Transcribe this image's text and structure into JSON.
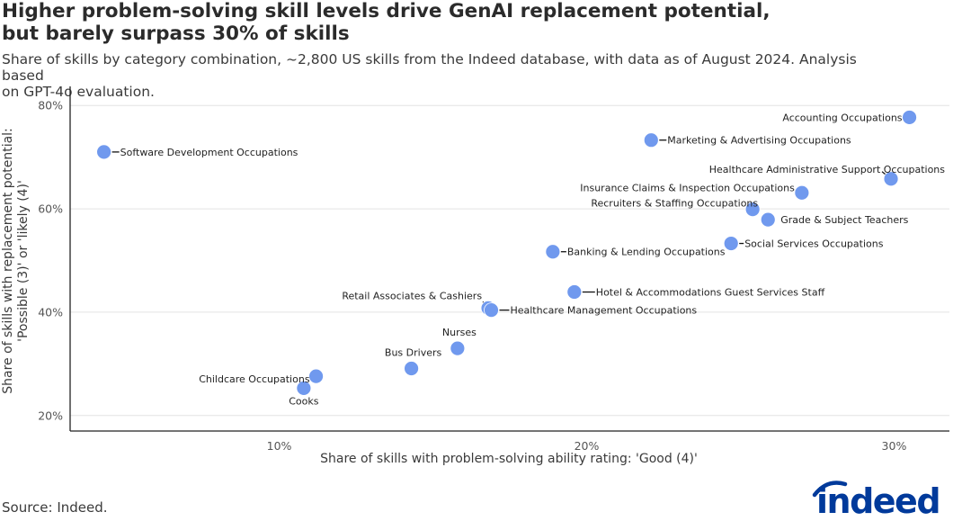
{
  "header": {
    "title_line1": "Higher problem-solving skill levels drive GenAI replacement potential,",
    "title_line2": "but barely surpass 30% of skills",
    "subtitle_line1": "Share of skills by category combination, ~2,800 US skills from the Indeed database, with data as of August 2024. Analysis based",
    "subtitle_line2": "on GPT-4o evaluation."
  },
  "footer": {
    "source": "Source: Indeed.",
    "logo_text": "indeed"
  },
  "colors": {
    "point": "#7099ee",
    "axis": "#222222",
    "grid": "#e3e3e3",
    "logo": "#003a9b"
  },
  "chart_data": {
    "type": "scatter",
    "xlabel": "Share of skills with problem-solving ability rating: 'Good (4)'",
    "ylabel_line1": "Share of skills with replacement potential:",
    "ylabel_line2": "'Possible (3)' or 'likely (4)'",
    "x_ticks": [
      {
        "value": 10,
        "label": "10%"
      },
      {
        "value": 20,
        "label": "20%"
      },
      {
        "value": 30,
        "label": "30%"
      }
    ],
    "y_ticks": [
      {
        "value": 20,
        "label": "20%"
      },
      {
        "value": 40,
        "label": "40%"
      },
      {
        "value": 60,
        "label": "60%"
      },
      {
        "value": 80,
        "label": "80%"
      }
    ],
    "xlim": [
      3.2,
      31.8
    ],
    "ylim": [
      17,
      83
    ],
    "grid": "horizontal",
    "points": [
      {
        "label": "Software Development Occupations",
        "x": 4.3,
        "y": 71.0
      },
      {
        "label": "Accounting Occupations",
        "x": 30.5,
        "y": 77.7
      },
      {
        "label": "Marketing & Advertising Occupations",
        "x": 22.1,
        "y": 73.3
      },
      {
        "label": "Healthcare Administrative Support Occupations",
        "x": 29.9,
        "y": 65.8
      },
      {
        "label": "Insurance Claims & Inspection Occupations",
        "x": 27.0,
        "y": 63.1
      },
      {
        "label": "Recruiters & Staffing Occupations",
        "x": 25.4,
        "y": 59.9
      },
      {
        "label": "Grade & Subject Teachers",
        "x": 25.9,
        "y": 57.9
      },
      {
        "label": "Social Services Occupations",
        "x": 24.7,
        "y": 53.3
      },
      {
        "label": "Banking & Lending Occupations",
        "x": 18.9,
        "y": 51.7
      },
      {
        "label": "Hotel & Accommodations Guest Services Staff",
        "x": 19.6,
        "y": 43.9
      },
      {
        "label": "Retail Associates & Cashiers",
        "x": 16.8,
        "y": 40.8
      },
      {
        "label": "Healthcare Management Occupations",
        "x": 16.9,
        "y": 40.4
      },
      {
        "label": "Nurses",
        "x": 15.8,
        "y": 33.0
      },
      {
        "label": "Bus Drivers",
        "x": 14.3,
        "y": 29.1
      },
      {
        "label": "Childcare Occupations",
        "x": 11.2,
        "y": 27.6
      },
      {
        "label": "Cooks",
        "x": 10.8,
        "y": 25.3
      }
    ]
  }
}
